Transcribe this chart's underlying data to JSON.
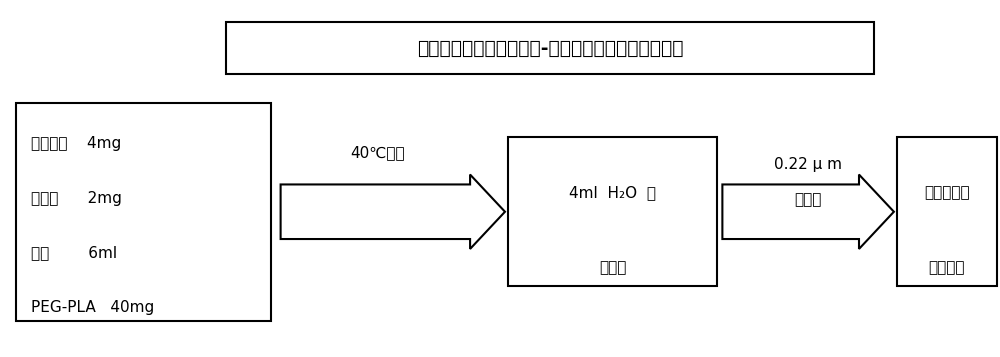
{
  "title": "薄膜水化法制备拉帕替尼-紫杉醇复方水溶胶束流程图",
  "bg_color": "#ffffff",
  "box1_lines": [
    "拉帕替尼    4mg",
    "紫杉醇      2mg",
    "甲醇        6ml",
    "PEG-PLA   40mg"
  ],
  "box2_lines": [
    "4ml  H₂O  溶",
    "化薄膜"
  ],
  "box3_lines": [
    "复方载药胶",
    "束水溶液"
  ],
  "arrow1_label": "40℃水浴",
  "arrow2_label": "0.22 μ m\n膜过滤"
}
